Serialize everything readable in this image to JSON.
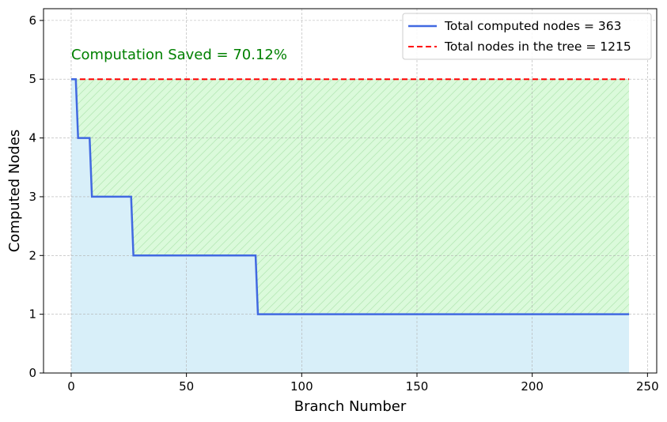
{
  "chart_data": {
    "type": "line",
    "title": "",
    "xlabel": "Branch Number",
    "ylabel": "Computed Nodes",
    "xlim": [
      -12,
      254
    ],
    "ylim": [
      0,
      6.2
    ],
    "xticks": [
      0,
      50,
      100,
      150,
      200,
      250
    ],
    "yticks": [
      0,
      1,
      2,
      3,
      4,
      5,
      6
    ],
    "grid": true,
    "legend_position": "top-right",
    "series": [
      {
        "name": "Total computed nodes = 363",
        "style": "solid",
        "color": "#4169e1",
        "x": [
          0,
          2,
          3,
          8,
          9,
          26,
          27,
          80,
          81,
          242
        ],
        "y": [
          5,
          5,
          4,
          4,
          3,
          3,
          2,
          2,
          1,
          1
        ]
      },
      {
        "name": "Total nodes in the tree = 1215",
        "style": "dashed",
        "color": "#ff0000",
        "x": [
          0,
          242
        ],
        "y": [
          5,
          5
        ]
      }
    ],
    "fills": [
      {
        "between": "computed-and-zero",
        "color": "#87ceeb",
        "opacity": 0.32
      },
      {
        "between": "total-and-computed",
        "color": "#90ee90",
        "opacity": 0.32,
        "hatch": "//"
      }
    ],
    "annotations": [
      {
        "text": "Computation Saved = 70.12%",
        "x": 0,
        "y": 5.42,
        "color": "#008000"
      }
    ]
  }
}
